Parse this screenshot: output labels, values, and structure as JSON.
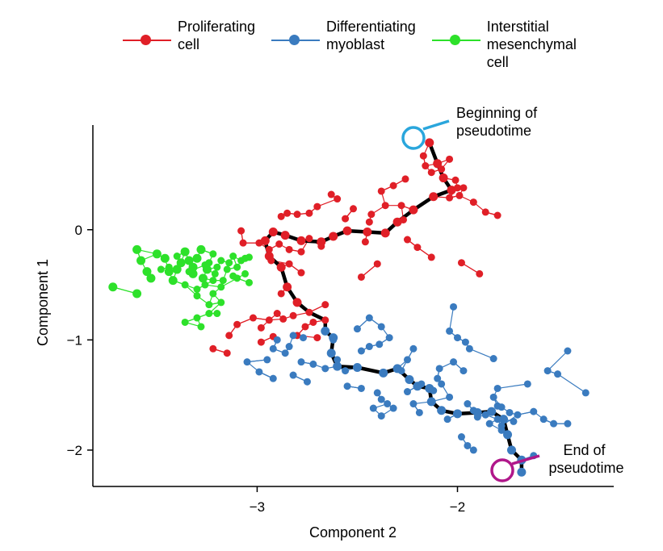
{
  "chart_data": {
    "type": "scatter",
    "title": "",
    "xlabel": "Component 2",
    "ylabel": "Component 1",
    "xlim": [
      -3.82,
      -1.22
    ],
    "ylim": [
      -2.33,
      0.95
    ],
    "xticks": [
      -3,
      -2
    ],
    "xtick_labels": [
      "−3",
      "−2"
    ],
    "yticks": [
      0,
      -1,
      -2
    ],
    "ytick_labels": [
      "0",
      "−1",
      "−2"
    ],
    "legend_position": "top",
    "annotations": {
      "start": "Beginning of\npseudotime",
      "end": "End of\npseudotime"
    },
    "colors": {
      "start_marker": "#2aa6dc",
      "end_marker": "#b0178a",
      "trajectory": "#000000"
    },
    "trajectory": [
      [
        -2.14,
        0.79
      ],
      [
        -2.1,
        0.6
      ],
      [
        -2.07,
        0.47
      ],
      [
        -2.03,
        0.36
      ],
      [
        -2.12,
        0.3
      ],
      [
        -2.22,
        0.18
      ],
      [
        -2.3,
        0.07
      ],
      [
        -2.36,
        -0.03
      ],
      [
        -2.45,
        -0.02
      ],
      [
        -2.55,
        -0.01
      ],
      [
        -2.62,
        -0.06
      ],
      [
        -2.68,
        -0.11
      ],
      [
        -2.78,
        -0.1
      ],
      [
        -2.86,
        -0.05
      ],
      [
        -2.92,
        -0.02
      ],
      [
        -2.96,
        -0.1
      ],
      [
        -2.94,
        -0.24
      ],
      [
        -2.88,
        -0.34
      ],
      [
        -2.85,
        -0.52
      ],
      [
        -2.8,
        -0.66
      ],
      [
        -2.74,
        -0.75
      ],
      [
        -2.66,
        -0.82
      ],
      [
        -2.66,
        -0.92
      ],
      [
        -2.62,
        -0.98
      ],
      [
        -2.63,
        -1.12
      ],
      [
        -2.6,
        -1.24
      ],
      [
        -2.5,
        -1.25
      ],
      [
        -2.37,
        -1.3
      ],
      [
        -2.3,
        -1.26
      ],
      [
        -2.24,
        -1.36
      ],
      [
        -2.2,
        -1.42
      ],
      [
        -2.14,
        -1.44
      ],
      [
        -2.13,
        -1.56
      ],
      [
        -2.08,
        -1.64
      ],
      [
        -2.0,
        -1.67
      ],
      [
        -1.9,
        -1.66
      ],
      [
        -1.83,
        -1.65
      ],
      [
        -1.77,
        -1.72
      ],
      [
        -1.75,
        -1.86
      ],
      [
        -1.73,
        -2.0
      ],
      [
        -1.68,
        -2.09
      ],
      [
        -1.68,
        -2.2
      ]
    ],
    "series": [
      {
        "name": "Proliferating\ncell",
        "color": "#e01f27",
        "points": [
          [
            -2.14,
            0.79
          ],
          [
            -2.1,
            0.6
          ],
          [
            -2.07,
            0.47
          ],
          [
            -2.03,
            0.36
          ],
          [
            -2.12,
            0.3
          ],
          [
            -2.22,
            0.18
          ],
          [
            -2.3,
            0.07
          ],
          [
            -2.36,
            -0.03
          ],
          [
            -2.45,
            -0.02
          ],
          [
            -2.55,
            -0.01
          ],
          [
            -2.62,
            -0.06
          ],
          [
            -2.68,
            -0.11
          ],
          [
            -2.78,
            -0.1
          ],
          [
            -2.86,
            -0.05
          ],
          [
            -2.92,
            -0.02
          ],
          [
            -2.96,
            -0.1
          ],
          [
            -2.94,
            -0.24
          ],
          [
            -2.88,
            -0.34
          ],
          [
            -2.85,
            -0.52
          ],
          [
            -2.8,
            -0.66
          ],
          [
            -2.74,
            -0.75
          ],
          [
            -2.66,
            -0.68
          ],
          [
            -2.66,
            -0.82
          ],
          [
            -2.17,
            0.67
          ],
          [
            -2.16,
            0.58
          ],
          [
            -2.13,
            0.52
          ],
          [
            -2.08,
            0.55
          ],
          [
            -2.04,
            0.64
          ],
          [
            -2.01,
            0.45
          ],
          [
            -2.0,
            0.38
          ],
          [
            -2.04,
            0.29
          ],
          [
            -1.99,
            0.31
          ],
          [
            -1.97,
            0.38
          ],
          [
            -1.92,
            0.25
          ],
          [
            -1.86,
            0.16
          ],
          [
            -1.8,
            0.13
          ],
          [
            -2.26,
            0.46
          ],
          [
            -2.32,
            0.4
          ],
          [
            -2.38,
            0.35
          ],
          [
            -2.36,
            0.22
          ],
          [
            -2.43,
            0.14
          ],
          [
            -2.44,
            0.07
          ],
          [
            -2.52,
            0.19
          ],
          [
            -2.56,
            0.1
          ],
          [
            -2.6,
            0.28
          ],
          [
            -2.7,
            0.21
          ],
          [
            -2.74,
            0.15
          ],
          [
            -2.8,
            0.14
          ],
          [
            -2.85,
            0.15
          ],
          [
            -2.88,
            0.12
          ],
          [
            -2.63,
            0.32
          ],
          [
            -2.28,
            0.22
          ],
          [
            -2.27,
            0.09
          ],
          [
            -2.25,
            -0.09
          ],
          [
            -2.2,
            -0.16
          ],
          [
            -2.13,
            -0.25
          ],
          [
            -1.98,
            -0.3
          ],
          [
            -1.89,
            -0.4
          ],
          [
            -2.4,
            -0.31
          ],
          [
            -2.48,
            -0.43
          ],
          [
            -2.46,
            -0.11
          ],
          [
            -2.68,
            -0.15
          ],
          [
            -2.74,
            -0.08
          ],
          [
            -2.78,
            -0.2
          ],
          [
            -2.84,
            -0.18
          ],
          [
            -2.89,
            -0.13
          ],
          [
            -2.94,
            -0.18
          ],
          [
            -2.99,
            -0.12
          ],
          [
            -3.07,
            -0.12
          ],
          [
            -3.08,
            -0.01
          ],
          [
            -2.93,
            -0.28
          ],
          [
            -2.84,
            -0.31
          ],
          [
            -2.78,
            -0.39
          ],
          [
            -2.88,
            -0.58
          ],
          [
            -2.9,
            -0.76
          ],
          [
            -2.94,
            -0.82
          ],
          [
            -3.02,
            -0.8
          ],
          [
            -3.1,
            -0.86
          ],
          [
            -3.14,
            -0.96
          ],
          [
            -3.22,
            -1.08
          ],
          [
            -3.15,
            -1.12
          ],
          [
            -2.98,
            -0.89
          ],
          [
            -2.87,
            -0.81
          ],
          [
            -2.8,
            -0.96
          ],
          [
            -2.76,
            -0.88
          ],
          [
            -2.72,
            -0.84
          ],
          [
            -2.92,
            -0.97
          ],
          [
            -2.98,
            -1.02
          ],
          [
            -2.82,
            -0.78
          ],
          [
            -2.7,
            -0.98
          ]
        ]
      },
      {
        "name": "Differentiating\nmyoblast",
        "color": "#3a7bbf",
        "points": [
          [
            -2.62,
            -0.98
          ],
          [
            -2.63,
            -1.12
          ],
          [
            -2.6,
            -1.24
          ],
          [
            -2.5,
            -1.25
          ],
          [
            -2.37,
            -1.3
          ],
          [
            -2.3,
            -1.26
          ],
          [
            -2.24,
            -1.36
          ],
          [
            -2.2,
            -1.42
          ],
          [
            -2.14,
            -1.44
          ],
          [
            -2.13,
            -1.56
          ],
          [
            -2.08,
            -1.64
          ],
          [
            -2.0,
            -1.67
          ],
          [
            -1.9,
            -1.66
          ],
          [
            -1.83,
            -1.65
          ],
          [
            -1.77,
            -1.72
          ],
          [
            -1.75,
            -1.86
          ],
          [
            -1.73,
            -2.0
          ],
          [
            -1.68,
            -2.09
          ],
          [
            -1.68,
            -2.2
          ],
          [
            -2.66,
            -0.92
          ],
          [
            -2.62,
            -1.0
          ],
          [
            -2.77,
            -0.98
          ],
          [
            -2.82,
            -0.96
          ],
          [
            -2.84,
            -1.06
          ],
          [
            -2.86,
            -1.12
          ],
          [
            -2.92,
            -1.08
          ],
          [
            -2.9,
            -1.0
          ],
          [
            -2.95,
            -1.18
          ],
          [
            -2.92,
            -1.35
          ],
          [
            -2.99,
            -1.29
          ],
          [
            -3.05,
            -1.2
          ],
          [
            -2.78,
            -1.2
          ],
          [
            -2.72,
            -1.22
          ],
          [
            -2.66,
            -1.26
          ],
          [
            -2.82,
            -1.32
          ],
          [
            -2.75,
            -1.38
          ],
          [
            -2.6,
            -1.18
          ],
          [
            -2.56,
            -1.28
          ],
          [
            -2.48,
            -1.1
          ],
          [
            -2.44,
            -1.06
          ],
          [
            -2.5,
            -0.9
          ],
          [
            -2.44,
            -0.8
          ],
          [
            -2.39,
            -1.04
          ],
          [
            -2.34,
            -0.98
          ],
          [
            -2.38,
            -0.88
          ],
          [
            -2.48,
            -1.44
          ],
          [
            -2.55,
            -1.42
          ],
          [
            -2.4,
            -1.48
          ],
          [
            -2.38,
            -1.54
          ],
          [
            -2.35,
            -1.58
          ],
          [
            -2.28,
            -1.28
          ],
          [
            -2.25,
            -1.18
          ],
          [
            -2.22,
            -1.08
          ],
          [
            -2.18,
            -1.4
          ],
          [
            -2.25,
            -1.47
          ],
          [
            -2.32,
            -1.62
          ],
          [
            -2.38,
            -1.69
          ],
          [
            -2.22,
            -1.58
          ],
          [
            -2.19,
            -1.66
          ],
          [
            -2.02,
            -0.7
          ],
          [
            -2.04,
            -0.92
          ],
          [
            -2.0,
            -0.98
          ],
          [
            -1.96,
            -1.02
          ],
          [
            -1.94,
            -1.08
          ],
          [
            -1.82,
            -1.17
          ],
          [
            -2.02,
            -1.2
          ],
          [
            -1.97,
            -1.28
          ],
          [
            -2.08,
            -1.4
          ],
          [
            -2.04,
            -1.52
          ],
          [
            -2.1,
            -1.35
          ],
          [
            -2.09,
            -1.26
          ],
          [
            -2.12,
            -1.46
          ],
          [
            -2.05,
            -1.72
          ],
          [
            -1.98,
            -1.88
          ],
          [
            -1.95,
            -1.96
          ],
          [
            -1.92,
            -2.0
          ],
          [
            -1.9,
            -1.7
          ],
          [
            -1.86,
            -1.68
          ],
          [
            -1.8,
            -1.72
          ],
          [
            -1.78,
            -1.78
          ],
          [
            -1.7,
            -1.68
          ],
          [
            -1.62,
            -1.65
          ],
          [
            -1.57,
            -1.72
          ],
          [
            -1.52,
            -1.76
          ],
          [
            -1.45,
            -1.76
          ],
          [
            -1.36,
            -1.48
          ],
          [
            -1.78,
            -1.82
          ],
          [
            -1.84,
            -1.76
          ],
          [
            -1.92,
            -1.64
          ],
          [
            -1.95,
            -1.58
          ],
          [
            -1.62,
            -2.05
          ],
          [
            -1.72,
            -1.74
          ],
          [
            -1.8,
            -1.6
          ],
          [
            -1.82,
            -1.52
          ],
          [
            -1.78,
            -1.61
          ],
          [
            -1.74,
            -1.66
          ],
          [
            -1.8,
            -1.44
          ],
          [
            -1.65,
            -1.4
          ],
          [
            -1.55,
            -1.28
          ],
          [
            -1.45,
            -1.1
          ],
          [
            -1.5,
            -1.31
          ],
          [
            -2.42,
            -1.62
          ]
        ]
      },
      {
        "name": "Interstitial\nmesenchymal\ncell",
        "color": "#2de12a",
        "points": [
          [
            -3.72,
            -0.52
          ],
          [
            -3.6,
            -0.58
          ],
          [
            -3.53,
            -0.44
          ],
          [
            -3.55,
            -0.38
          ],
          [
            -3.58,
            -0.28
          ],
          [
            -3.6,
            -0.18
          ],
          [
            -3.5,
            -0.22
          ],
          [
            -3.46,
            -0.26
          ],
          [
            -3.44,
            -0.38
          ],
          [
            -3.42,
            -0.46
          ],
          [
            -3.4,
            -0.36
          ],
          [
            -3.38,
            -0.3
          ],
          [
            -3.36,
            -0.2
          ],
          [
            -3.34,
            -0.28
          ],
          [
            -3.32,
            -0.34
          ],
          [
            -3.32,
            -0.4
          ],
          [
            -3.3,
            -0.26
          ],
          [
            -3.28,
            -0.18
          ],
          [
            -3.27,
            -0.44
          ],
          [
            -3.25,
            -0.36
          ],
          [
            -3.24,
            -0.3
          ],
          [
            -3.22,
            -0.22
          ],
          [
            -3.21,
            -0.4
          ],
          [
            -3.2,
            -0.34
          ],
          [
            -3.18,
            -0.28
          ],
          [
            -3.17,
            -0.46
          ],
          [
            -3.15,
            -0.36
          ],
          [
            -3.14,
            -0.3
          ],
          [
            -3.12,
            -0.24
          ],
          [
            -3.1,
            -0.34
          ],
          [
            -3.08,
            -0.28
          ],
          [
            -3.06,
            -0.26
          ],
          [
            -3.04,
            -0.25
          ],
          [
            -3.04,
            -0.48
          ],
          [
            -3.1,
            -0.44
          ],
          [
            -3.18,
            -0.52
          ],
          [
            -3.26,
            -0.5
          ],
          [
            -3.3,
            -0.54
          ],
          [
            -3.36,
            -0.5
          ],
          [
            -3.3,
            -0.6
          ],
          [
            -3.24,
            -0.68
          ],
          [
            -3.22,
            -0.58
          ],
          [
            -3.18,
            -0.66
          ],
          [
            -3.24,
            -0.76
          ],
          [
            -3.3,
            -0.8
          ],
          [
            -3.36,
            -0.84
          ],
          [
            -3.28,
            -0.88
          ],
          [
            -3.2,
            -0.76
          ],
          [
            -3.12,
            -0.42
          ],
          [
            -3.44,
            -0.34
          ],
          [
            -3.48,
            -0.36
          ],
          [
            -3.4,
            -0.24
          ],
          [
            -3.34,
            -0.38
          ],
          [
            -3.26,
            -0.32
          ],
          [
            -3.22,
            -0.46
          ],
          [
            -3.06,
            -0.4
          ]
        ]
      }
    ]
  }
}
